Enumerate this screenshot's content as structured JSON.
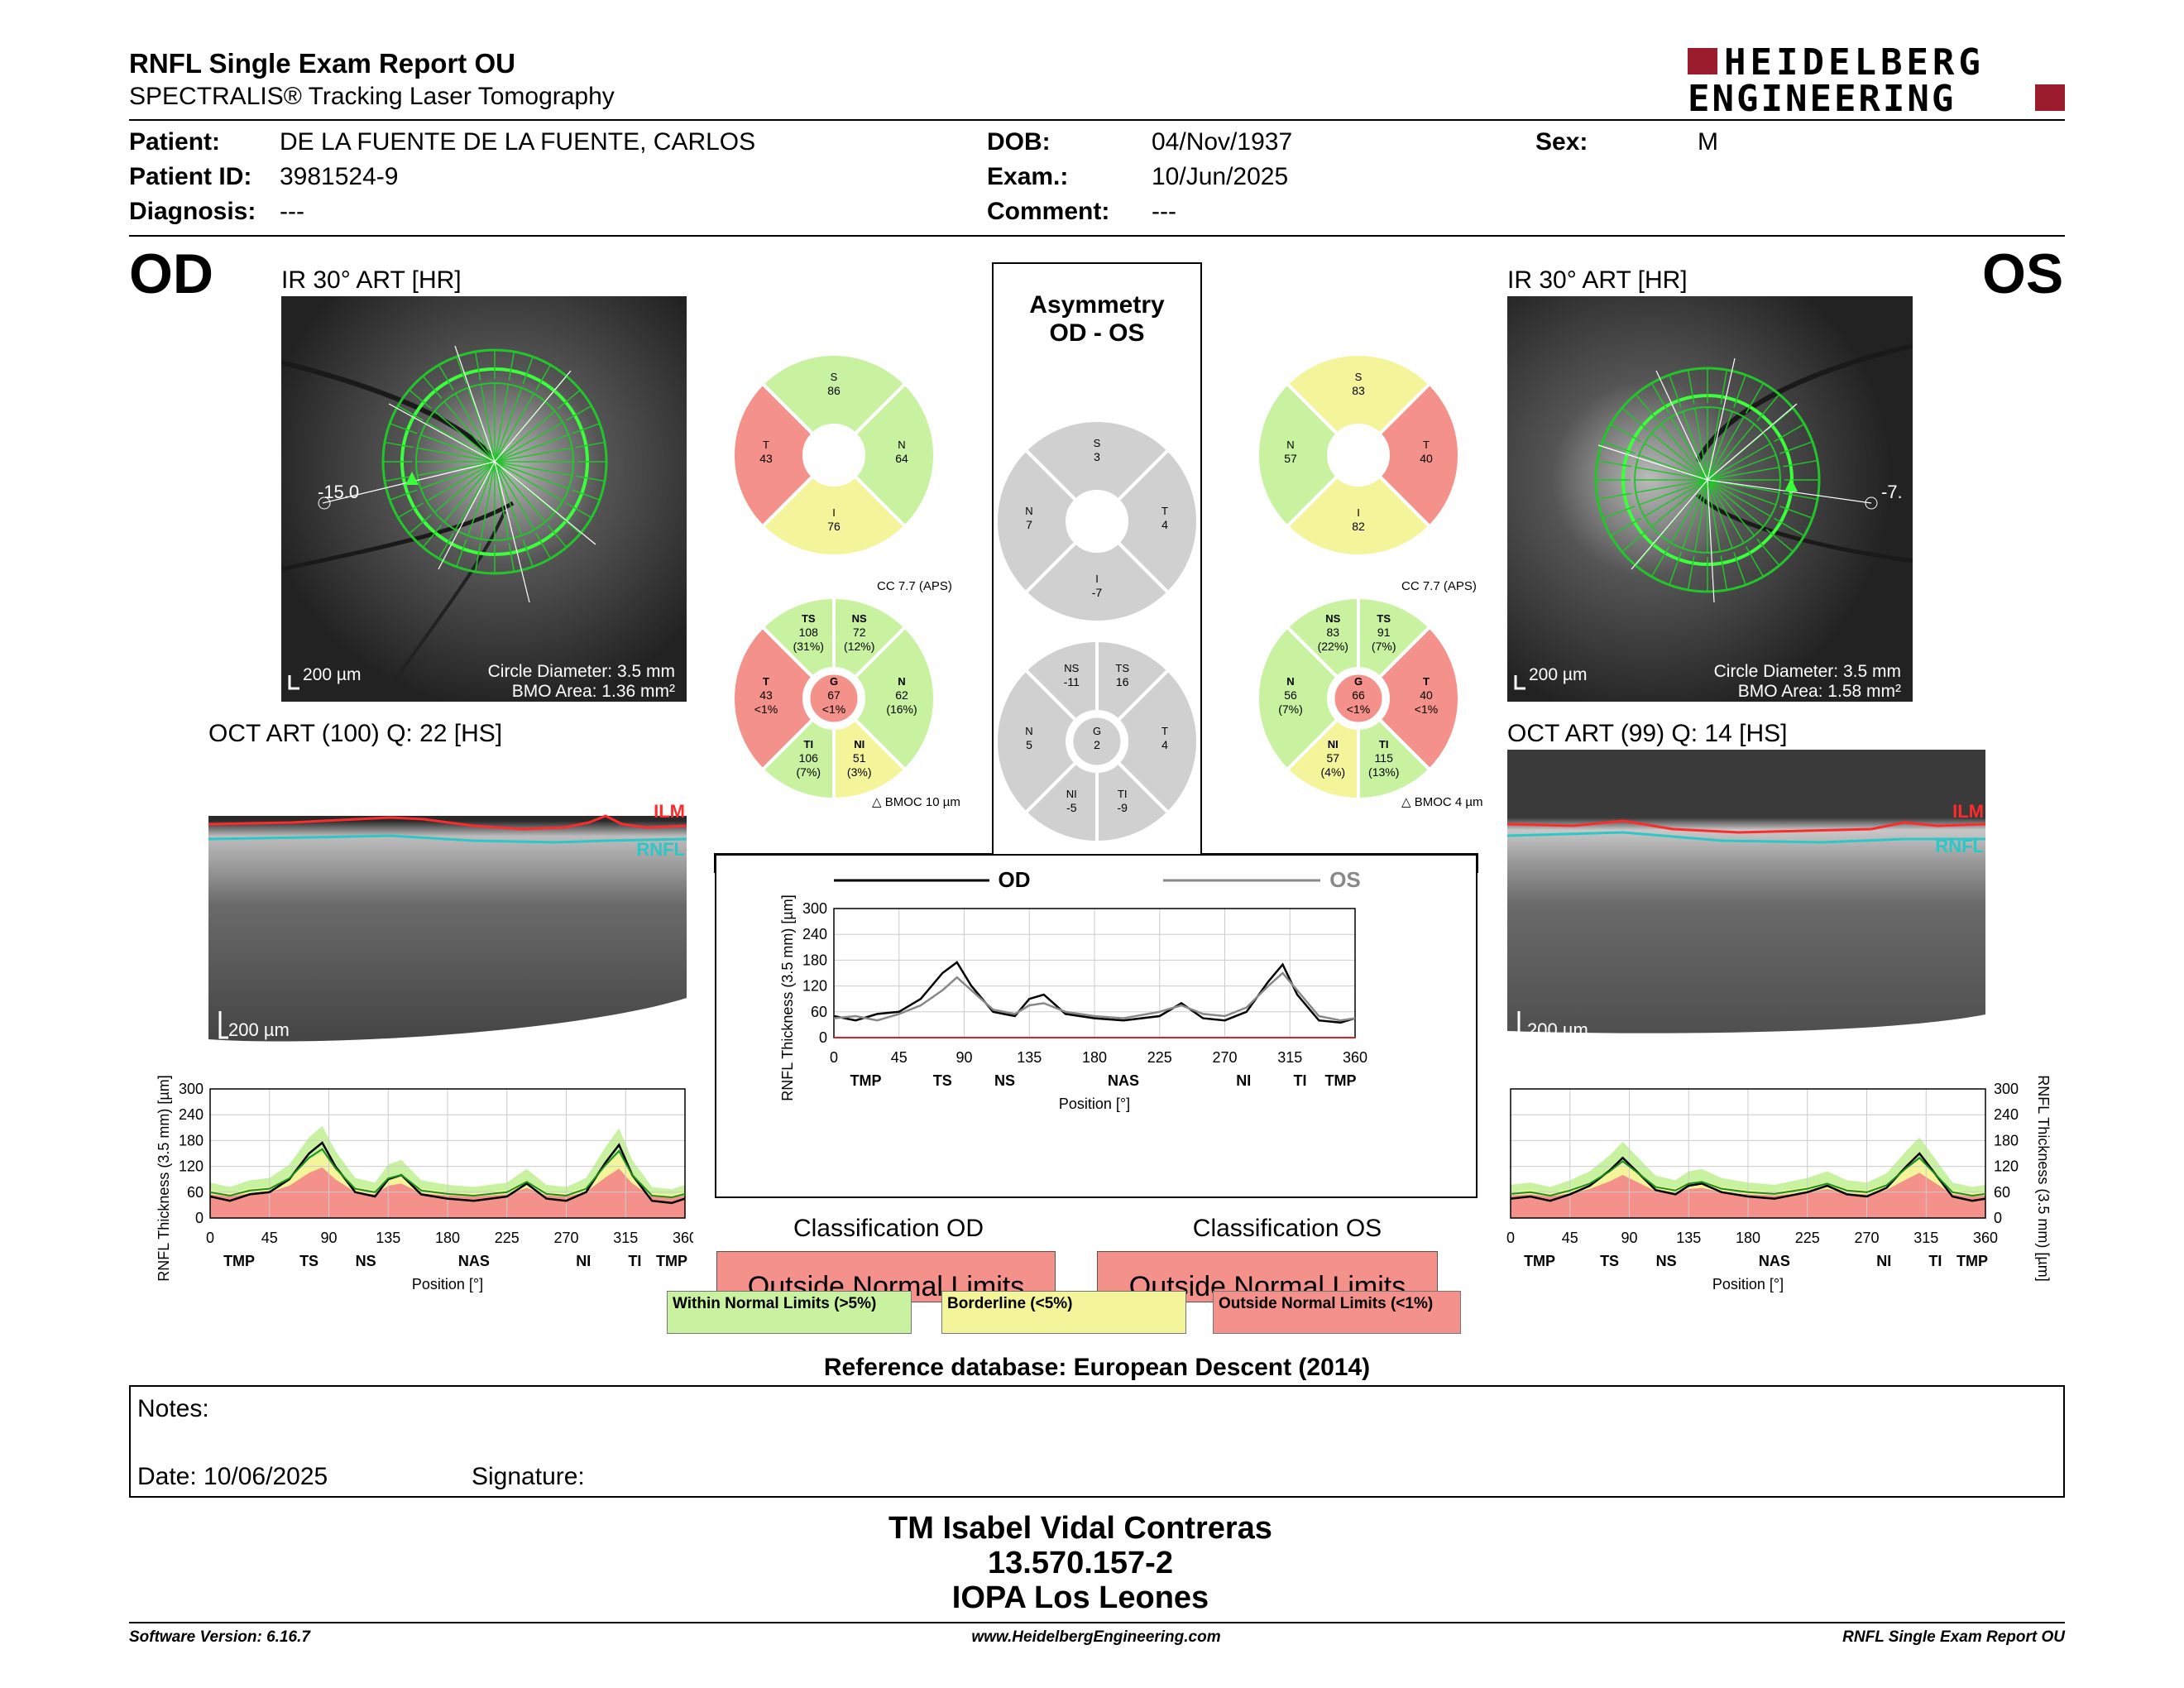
{
  "header": {
    "title": "RNFL Single Exam Report OU",
    "subtitle": "SPECTRALIS® Tracking Laser Tomography",
    "logo_line1": "HEIDELBERG",
    "logo_line2": "ENGINEERING"
  },
  "patient": {
    "patient_label": "Patient:",
    "patient_value": "DE LA FUENTE DE LA FUENTE, CARLOS",
    "id_label": "Patient ID:",
    "id_value": "3981524-9",
    "diagnosis_label": "Diagnosis:",
    "diagnosis_value": "---",
    "dob_label": "DOB:",
    "dob_value": "04/Nov/1937",
    "exam_label": "Exam.:",
    "exam_value": "10/Jun/2025",
    "comment_label": "Comment:",
    "comment_value": "---",
    "sex_label": "Sex:",
    "sex_value": "M"
  },
  "od": {
    "eye": "OD",
    "ir_caption": "IR 30° ART [HR]",
    "angle": "-15.0",
    "scale": "200 µm",
    "circle_diameter": "Circle Diameter: 3.5 mm",
    "bmo_area": "BMO Area: 1.36 mm²",
    "oct_caption": "OCT ART (100) Q: 22 [HS]",
    "oct_scale": "200 µm",
    "ilm": "ILM",
    "rnfl": "RNFL",
    "quad": {
      "S": "86",
      "N": "64",
      "I": "76",
      "T": "43"
    },
    "cc": "CC 7.7 (APS)",
    "sect": {
      "TS": [
        "108",
        "(31%)"
      ],
      "NS": [
        "72",
        "(12%)"
      ],
      "N": [
        "62",
        "(16%)"
      ],
      "NI": [
        "51",
        "(3%)"
      ],
      "TI": [
        "106",
        "(7%)"
      ],
      "T": [
        "43",
        "<1%"
      ],
      "G": [
        "67",
        "<1%"
      ]
    },
    "bmoc": "BMOC 10 µm",
    "classification_title": "Classification OD",
    "classification": "Outside Normal Limits",
    "colors": {
      "S": "#c8f2a0",
      "N": "#c8f2a0",
      "I": "#f4f49a",
      "T": "#f4918a",
      "TS": "#c8f2a0",
      "NS": "#c8f2a0",
      "Nsec": "#c8f2a0",
      "NI": "#f4f49a",
      "TI": "#c8f2a0",
      "Tsec": "#f4918a",
      "G": "#f4918a"
    }
  },
  "os": {
    "eye": "OS",
    "ir_caption": "IR 30° ART [HR]",
    "angle": "-7.",
    "scale": "200 µm",
    "circle_diameter": "Circle Diameter: 3.5 mm",
    "bmo_area": "BMO Area: 1.58 mm²",
    "oct_caption": "OCT ART (99) Q: 14 [HS]",
    "oct_scale": "200 µm",
    "ilm": "ILM",
    "rnfl": "RNFL",
    "quad": {
      "S": "83",
      "N": "57",
      "I": "82",
      "T": "40"
    },
    "cc": "CC 7.7 (APS)",
    "sect": {
      "NS": [
        "83",
        "(22%)"
      ],
      "TS": [
        "91",
        "(7%)"
      ],
      "T": [
        "40",
        "<1%"
      ],
      "TI": [
        "115",
        "(13%)"
      ],
      "NI": [
        "57",
        "(4%)"
      ],
      "N": [
        "56",
        "(7%)"
      ],
      "G": [
        "66",
        "<1%"
      ]
    },
    "bmoc": "BMOC 4 µm",
    "classification_title": "Classification OS",
    "classification": "Outside Normal Limits",
    "colors": {
      "S": "#f4f49a",
      "N": "#c8f2a0",
      "I": "#f4f49a",
      "T": "#f4918a",
      "TS": "#c8f2a0",
      "NS": "#c8f2a0",
      "Nsec": "#c8f2a0",
      "NI": "#f4f49a",
      "TI": "#c8f2a0",
      "Tsec": "#f4918a",
      "G": "#f4918a"
    }
  },
  "asymmetry": {
    "title1": "Asymmetry",
    "title2": "OD - OS",
    "quad": {
      "S": "3",
      "N": "7",
      "I": "-7",
      "T": "4"
    },
    "sect": {
      "NS": "-11",
      "TS": "16",
      "N": "5",
      "G": "2",
      "T": "4",
      "NI": "-5",
      "TI": "-9"
    }
  },
  "chart_data": [
    {
      "type": "line",
      "legend": [
        "OD",
        "OS"
      ],
      "ylabel": "RNFL Thickness (3.5 mm) [µm]",
      "xlabel": "Position [°]",
      "ylim": [
        0,
        300
      ],
      "xlim": [
        0,
        360
      ],
      "yticks": [
        "300",
        "240",
        "180",
        "120",
        "60",
        "0"
      ],
      "xticks": [
        "0",
        "45",
        "90",
        "135",
        "180",
        "225",
        "270",
        "315",
        "360"
      ],
      "sectors": [
        "TMP",
        "TS",
        "NS",
        "NAS",
        "NI",
        "TI",
        "TMP"
      ],
      "series": [
        {
          "name": "OD",
          "x": [
            0,
            15,
            30,
            45,
            60,
            75,
            85,
            95,
            110,
            125,
            135,
            145,
            160,
            180,
            200,
            225,
            240,
            255,
            270,
            285,
            300,
            310,
            320,
            335,
            350,
            360
          ],
          "y": [
            50,
            40,
            55,
            60,
            90,
            150,
            175,
            120,
            60,
            50,
            90,
            100,
            55,
            45,
            40,
            50,
            80,
            45,
            40,
            60,
            130,
            170,
            100,
            40,
            35,
            45
          ]
        },
        {
          "name": "OS",
          "x": [
            0,
            15,
            30,
            45,
            60,
            75,
            85,
            95,
            110,
            125,
            135,
            145,
            160,
            180,
            200,
            225,
            240,
            255,
            270,
            285,
            300,
            310,
            320,
            335,
            350,
            360
          ],
          "y": [
            45,
            50,
            40,
            55,
            75,
            110,
            140,
            110,
            65,
            55,
            75,
            80,
            60,
            50,
            45,
            60,
            75,
            55,
            50,
            70,
            120,
            150,
            110,
            50,
            40,
            45
          ]
        }
      ]
    },
    {
      "type": "line",
      "name": "OD",
      "ylabel": "RNFL Thickness (3.5 mm) [µm]",
      "xlabel": "Position [°]",
      "ylim": [
        0,
        300
      ],
      "yticks": [
        "300",
        "240",
        "180",
        "120",
        "60",
        "0"
      ],
      "xticks": [
        "0",
        "45",
        "90",
        "135",
        "180",
        "225",
        "270",
        "315",
        "360"
      ],
      "sectors": [
        "TMP",
        "TS",
        "NS",
        "NAS",
        "NI",
        "TI",
        "TMP"
      ],
      "series": [
        {
          "name": "OD",
          "x": [
            0,
            15,
            30,
            45,
            60,
            75,
            85,
            95,
            110,
            125,
            135,
            145,
            160,
            180,
            200,
            225,
            240,
            255,
            270,
            285,
            300,
            310,
            320,
            335,
            350,
            360
          ],
          "y": [
            50,
            40,
            55,
            60,
            90,
            150,
            175,
            120,
            60,
            50,
            90,
            100,
            55,
            45,
            40,
            50,
            80,
            45,
            40,
            60,
            130,
            170,
            100,
            40,
            35,
            45
          ]
        }
      ]
    },
    {
      "type": "line",
      "name": "OS",
      "ylabel": "RNFL Thickness (3.5 mm) [µm]",
      "xlabel": "Position [°]",
      "ylim": [
        0,
        300
      ],
      "yticks": [
        "300",
        "240",
        "180",
        "120",
        "60",
        "0"
      ],
      "xticks": [
        "0",
        "45",
        "90",
        "135",
        "180",
        "225",
        "270",
        "315",
        "360"
      ],
      "sectors": [
        "TMP",
        "TS",
        "NS",
        "NAS",
        "NI",
        "TI",
        "TMP"
      ],
      "series": [
        {
          "name": "OS",
          "x": [
            0,
            15,
            30,
            45,
            60,
            75,
            85,
            95,
            110,
            125,
            135,
            145,
            160,
            180,
            200,
            225,
            240,
            255,
            270,
            285,
            300,
            310,
            320,
            335,
            350,
            360
          ],
          "y": [
            45,
            50,
            40,
            55,
            75,
            110,
            140,
            110,
            65,
            55,
            75,
            80,
            60,
            50,
            45,
            60,
            75,
            55,
            50,
            70,
            120,
            150,
            110,
            50,
            40,
            45
          ]
        }
      ]
    }
  ],
  "legend": {
    "within": "Within Normal Limits (>5%)",
    "borderline": "Borderline (<5%)",
    "outside": "Outside Normal Limits (<1%)"
  },
  "reference": "Reference database: European Descent (2014)",
  "notes": {
    "label": "Notes:",
    "date": "Date: 10/06/2025",
    "signature": "Signature:"
  },
  "signer": {
    "name": "TM Isabel Vidal Contreras",
    "id": "13.570.157-2",
    "org": "IOPA Los Leones"
  },
  "footer": {
    "software": "Software Version: 6.16.7",
    "url": "www.HeidelbergEngineering.com",
    "report": "RNFL Single Exam Report OU"
  }
}
